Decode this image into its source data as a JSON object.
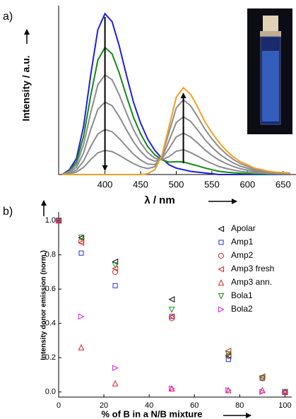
{
  "chart_data": [
    {
      "type": "line",
      "label": "a)",
      "y_label": "Intensity / a.u.",
      "x_label": "λ / nm",
      "x": [
        340,
        350,
        360,
        370,
        380,
        390,
        400,
        410,
        420,
        430,
        440,
        450,
        460,
        470,
        480,
        490,
        500,
        510,
        520,
        530,
        540,
        550,
        560,
        570,
        580,
        590,
        600,
        610,
        620,
        630,
        640,
        650,
        660
      ],
      "xlim": [
        335,
        668
      ],
      "xticks": [
        400,
        450,
        500,
        550,
        600,
        650
      ],
      "ylim": [
        0,
        105
      ],
      "series": [
        {
          "color": "#1f1fe0",
          "values": [
            0,
            3,
            10,
            30,
            62,
            90,
            100,
            95,
            80,
            62,
            45,
            32,
            22,
            15,
            10,
            6,
            4,
            3,
            2,
            1.5,
            1,
            0.5,
            0,
            0,
            0,
            0,
            0,
            0,
            0,
            0,
            0,
            0,
            0
          ]
        },
        {
          "color": "#138a13",
          "values": [
            0,
            2.4,
            7.9,
            23.7,
            49,
            71.1,
            79,
            75,
            63.2,
            49,
            35.6,
            25.3,
            17.4,
            12.2,
            9.1,
            7.7,
            8,
            7.8,
            6.6,
            5.4,
            4.1,
            3,
            2,
            1.5,
            1.1,
            0.8,
            0.6,
            0.4,
            0.3,
            0.2,
            0.2,
            0.1,
            0.1
          ]
        },
        {
          "color": "#8c8c8c",
          "values": [
            0,
            1.9,
            6.2,
            18.6,
            38.4,
            55.8,
            62,
            58.9,
            49.6,
            38.4,
            27.9,
            19.8,
            13.7,
            10.1,
            9.2,
            11.2,
            14.5,
            15.4,
            13.7,
            11.4,
            8.9,
            6.8,
            5,
            3.8,
            2.8,
            2,
            1.5,
            1,
            0.8,
            0.5,
            0.4,
            0.3,
            0.3
          ]
        },
        {
          "color": "#8c8c8c",
          "values": [
            0,
            1.4,
            4.5,
            13.5,
            27.9,
            40.5,
            45,
            42.8,
            36,
            27.9,
            20.3,
            14.4,
            10.1,
            8.2,
            9.9,
            16.2,
            23.4,
            25.7,
            23.4,
            19.6,
            15.4,
            11.9,
            9,
            6.8,
            5,
            3.6,
            2.7,
            1.8,
            1.4,
            0.9,
            0.7,
            0.5,
            0.5
          ]
        },
        {
          "color": "#8c8c8c",
          "values": [
            0,
            0.8,
            2.8,
            8.4,
            17.4,
            25.2,
            28,
            26.6,
            22.4,
            17.4,
            12.6,
            9,
            6.5,
            6.2,
            10.6,
            21.2,
            32.3,
            35.9,
            33.1,
            27.7,
            21.8,
            17,
            13,
            9.8,
            7.2,
            5.2,
            3.9,
            2.6,
            2,
            1.3,
            1,
            0.8,
            0.7
          ]
        },
        {
          "color": "#8c8c8c",
          "values": [
            0,
            0.5,
            1.5,
            4.5,
            9.3,
            13.5,
            15,
            14.3,
            12,
            9.3,
            6.8,
            4.8,
            3.7,
            4.9,
            11.7,
            26.4,
            41.4,
            46.4,
            42.8,
            35.9,
            28.3,
            22.2,
            17,
            12.8,
            9.4,
            6.8,
            5.1,
            3.4,
            2.6,
            1.7,
            1.3,
            1,
            0.9
          ]
        },
        {
          "color": "#f5a020",
          "values": [
            0,
            0,
            0,
            0,
            0,
            0,
            0,
            0,
            0,
            0,
            0,
            0,
            0.5,
            3,
            12,
            30,
            48,
            54,
            50,
            42,
            33,
            26,
            20,
            15,
            11,
            8,
            6,
            4,
            3,
            2,
            1.5,
            1.2,
            1
          ]
        }
      ]
    },
    {
      "type": "scatter",
      "label": "b)",
      "y_label": "Intensity donor emission (norm.)",
      "x_label": "% of B in a N/B mixture",
      "x": [
        0,
        10,
        25,
        50,
        75,
        90,
        100
      ],
      "xlim": [
        0,
        103
      ],
      "xticks": [
        0,
        20,
        40,
        60,
        80,
        100
      ],
      "ylim": [
        -0.03,
        1.05
      ],
      "yticks": [
        {
          "value": 0,
          "label": "0.0"
        },
        0.2,
        0.4,
        0.6,
        0.8,
        {
          "value": 1,
          "label": "1.0"
        }
      ],
      "legend": "upper right",
      "series": [
        {
          "name": "Apolar",
          "color": "#000000",
          "marker": "triangle-left",
          "values": [
            1.0,
            0.9,
            0.76,
            0.54,
            0.21,
            0.09,
            0.0
          ]
        },
        {
          "name": "Amp1",
          "color": "#2030e0",
          "marker": "square",
          "values": [
            1.0,
            0.81,
            0.62,
            0.44,
            0.19,
            0.08,
            0.0
          ]
        },
        {
          "name": "Amp2",
          "color": "#e02020",
          "marker": "circle",
          "values": [
            1.0,
            0.88,
            0.7,
            0.43,
            0.21,
            0.08,
            0.0
          ]
        },
        {
          "name": "Amp3 fresh",
          "color": "#e02020",
          "marker": "triangle-left",
          "values": [
            1.0,
            0.87,
            0.72,
            0.44,
            0.24,
            0.09,
            0.0
          ]
        },
        {
          "name": "Amp3 ann.",
          "color": "#e02020",
          "marker": "triangle-up",
          "values": [
            1.0,
            0.26,
            0.05,
            0.02,
            0.01,
            0.01,
            0.0
          ]
        },
        {
          "name": "Bola1",
          "color": "#109010",
          "marker": "triangle-down",
          "values": [
            1.0,
            0.9,
            0.74,
            0.48,
            0.22,
            0.08,
            0.0
          ]
        },
        {
          "name": "Bola2",
          "color": "#e020e0",
          "marker": "triangle-right",
          "values": [
            1.0,
            0.44,
            0.14,
            0.02,
            0.01,
            0.0,
            0.0
          ]
        }
      ]
    }
  ]
}
